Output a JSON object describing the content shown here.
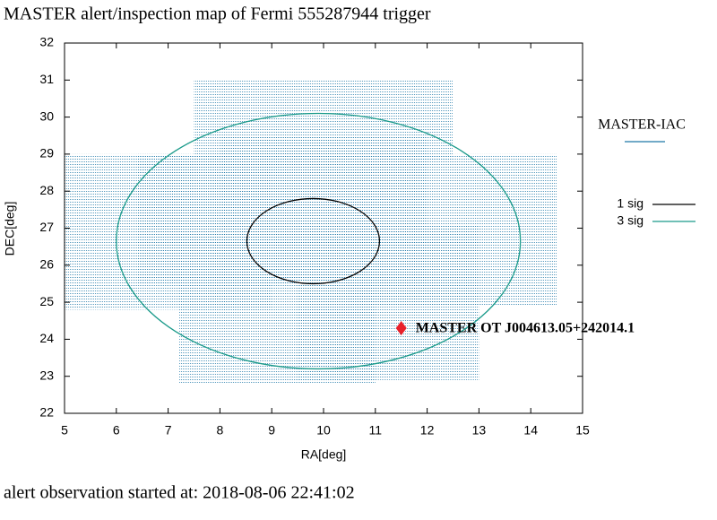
{
  "chart_data": {
    "type": "map",
    "title": "MASTER alert/inspection map of Fermi 555287944 trigger",
    "xlabel": "RA[deg]",
    "ylabel": "DEC[deg]",
    "xlim": [
      5,
      15
    ],
    "ylim": [
      22,
      32
    ],
    "xticks": [
      5,
      6,
      7,
      8,
      9,
      10,
      11,
      12,
      13,
      14,
      15
    ],
    "yticks": [
      22,
      23,
      24,
      25,
      26,
      27,
      28,
      29,
      30,
      31,
      32
    ],
    "fields": {
      "name": "MASTER-IAC",
      "color": "#1f78a8",
      "ra": [
        [
          7.5,
          12.5
        ],
        [
          5.0,
          9.0
        ],
        [
          10.5,
          14.5
        ],
        [
          7.2,
          11.0
        ],
        [
          9.5,
          13.0
        ],
        [
          8.0,
          12.0
        ],
        [
          6.4,
          10.5
        ]
      ],
      "dec": [
        [
          28.8,
          31.0
        ],
        [
          24.8,
          29.0
        ],
        [
          24.9,
          29.0
        ],
        [
          22.8,
          26.9
        ],
        [
          22.9,
          27.1
        ],
        [
          25.5,
          29.5
        ],
        [
          25.5,
          29.0
        ]
      ]
    },
    "ellipses": [
      {
        "name": "1 sig",
        "color": "#000000",
        "center": [
          9.8,
          26.65
        ],
        "radii": [
          1.28,
          1.15
        ]
      },
      {
        "name": "3 sig",
        "color": "#1a9a8a",
        "center": [
          9.9,
          26.65
        ],
        "radii": [
          3.9,
          3.45
        ]
      }
    ],
    "transient": {
      "label": "MASTER OT J004613.05+242014.1",
      "color": "#e8202a",
      "x": 11.5,
      "y": 24.3
    }
  },
  "footer": "alert observation started at: 2018-08-06 22:41:02"
}
